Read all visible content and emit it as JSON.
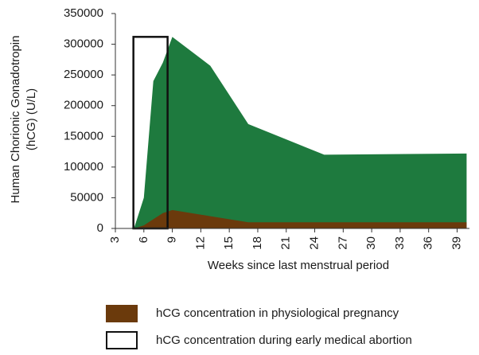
{
  "chart_data": {
    "type": "area_range",
    "ylabel": [
      "Human Chorionic Gonadotropin",
      "(hCG) (U/L)"
    ],
    "xlabel": "Weeks since last menstrual period",
    "x": [
      4.5,
      5,
      6,
      7,
      8,
      9,
      13,
      17,
      21,
      25,
      40
    ],
    "series": [
      {
        "name": "hCG concentration in physiological pregnancy",
        "color": "#6b3a0c",
        "range_color": "#1e7a3e",
        "upper": [
          0,
          2000,
          50000,
          240000,
          270000,
          312000,
          265000,
          170000,
          145000,
          120000,
          122000
        ],
        "lower": [
          0,
          0,
          5000,
          15000,
          25000,
          30000,
          20000,
          10000,
          10000,
          10000,
          10000
        ]
      }
    ],
    "box": {
      "name": "hCG concentration during early medical abortion",
      "color": "#111111",
      "x": [
        4.9,
        8.5
      ],
      "y": [
        0,
        312000
      ]
    },
    "xlim": [
      3,
      40.3
    ],
    "ylim": [
      0,
      350000
    ],
    "xticks": [
      3,
      6,
      9,
      12,
      15,
      18,
      21,
      24,
      27,
      30,
      33,
      36,
      39
    ],
    "yticks": [
      0,
      50000,
      100000,
      150000,
      200000,
      250000,
      300000,
      350000
    ]
  }
}
